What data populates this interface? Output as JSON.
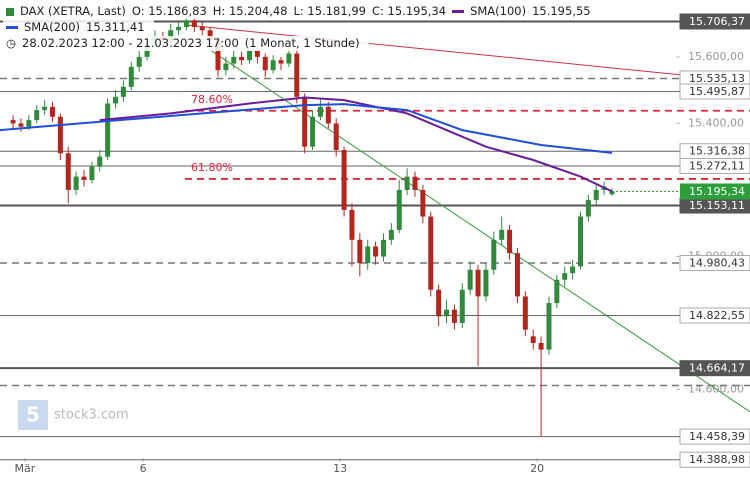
{
  "chart_data": {
    "type": "candlestick",
    "instrument": "DAX (XETRA, Last)",
    "ohlc_labels": [
      "O: 15.186,83",
      "H: 15.204,48",
      "L: 15.181,99",
      "C: 15.195,34"
    ],
    "period": "28.02.2023 12:00 - 21.03.2023 17:00",
    "interval": "(1 Monat, 1 Stunde)",
    "watermark": "stock3.com",
    "up_color": "#2f8a3b",
    "down_color": "#b3261e",
    "xlim": [
      -1.66,
      93.51
    ],
    "ylim": [
      14328,
      15771
    ],
    "xticks": [
      {
        "value": 1.5,
        "label": "Mär"
      },
      {
        "value": 16.5,
        "label": "6"
      },
      {
        "value": 41.5,
        "label": "13"
      },
      {
        "value": 66.5,
        "label": "20"
      }
    ],
    "yticks": [
      {
        "value": 15600,
        "label": "15.600,00"
      },
      {
        "value": 15400,
        "label": "15.400,00"
      },
      {
        "value": 15000,
        "label": "15.000,00"
      },
      {
        "value": 14600,
        "label": "14.600,00"
      }
    ],
    "candles": [
      [
        15410,
        15425,
        15385,
        15400
      ],
      [
        15400,
        15415,
        15375,
        15390
      ],
      [
        15390,
        15425,
        15380,
        15410
      ],
      [
        15410,
        15455,
        15400,
        15440
      ],
      [
        15440,
        15470,
        15425,
        15450
      ],
      [
        15450,
        15465,
        15405,
        15420
      ],
      [
        15420,
        15430,
        15290,
        15310
      ],
      [
        15310,
        15330,
        15160,
        15200
      ],
      [
        15200,
        15255,
        15185,
        15240
      ],
      [
        15240,
        15260,
        15210,
        15230
      ],
      [
        15230,
        15285,
        15220,
        15270
      ],
      [
        15270,
        15320,
        15255,
        15300
      ],
      [
        15300,
        15475,
        15290,
        15460
      ],
      [
        15460,
        15500,
        15445,
        15480
      ],
      [
        15480,
        15530,
        15465,
        15510
      ],
      [
        15510,
        15585,
        15500,
        15570
      ],
      [
        15570,
        15620,
        15555,
        15600
      ],
      [
        15600,
        15655,
        15590,
        15640
      ],
      [
        15640,
        15680,
        15625,
        15660
      ],
      [
        15660,
        15675,
        15635,
        15650
      ],
      [
        15650,
        15700,
        15640,
        15680
      ],
      [
        15680,
        15710,
        15665,
        15690
      ],
      [
        15690,
        15725,
        15680,
        15710
      ],
      [
        15710,
        15720,
        15675,
        15690
      ],
      [
        15690,
        15705,
        15665,
        15680
      ],
      [
        15680,
        15690,
        15630,
        15650
      ],
      [
        15650,
        15660,
        15540,
        15560
      ],
      [
        15560,
        15600,
        15545,
        15580
      ],
      [
        15580,
        15620,
        15565,
        15600
      ],
      [
        15600,
        15615,
        15575,
        15590
      ],
      [
        15590,
        15640,
        15580,
        15620
      ],
      [
        15620,
        15630,
        15580,
        15600
      ],
      [
        15600,
        15610,
        15540,
        15560
      ],
      [
        15560,
        15605,
        15550,
        15590
      ],
      [
        15590,
        15600,
        15560,
        15580
      ],
      [
        15580,
        15630,
        15570,
        15610
      ],
      [
        15610,
        15620,
        15460,
        15480
      ],
      [
        15480,
        15490,
        15310,
        15330
      ],
      [
        15330,
        15440,
        15320,
        15420
      ],
      [
        15420,
        15475,
        15410,
        15450
      ],
      [
        15450,
        15465,
        15385,
        15400
      ],
      [
        15400,
        15415,
        15300,
        15320
      ],
      [
        15320,
        15330,
        15120,
        15140
      ],
      [
        15140,
        15160,
        14970,
        15050
      ],
      [
        15050,
        15070,
        14940,
        14980
      ],
      [
        14980,
        15050,
        14960,
        15030
      ],
      [
        15030,
        15045,
        14975,
        15000
      ],
      [
        15000,
        15070,
        14985,
        15050
      ],
      [
        15050,
        15100,
        15035,
        15080
      ],
      [
        15080,
        15230,
        15070,
        15200
      ],
      [
        15200,
        15265,
        15185,
        15240
      ],
      [
        15240,
        15255,
        15180,
        15200
      ],
      [
        15200,
        15215,
        15100,
        15120
      ],
      [
        15120,
        15135,
        14880,
        14900
      ],
      [
        14900,
        14915,
        14790,
        14820
      ],
      [
        14820,
        14870,
        14800,
        14840
      ],
      [
        14840,
        14855,
        14780,
        14800
      ],
      [
        14800,
        14920,
        14785,
        14900
      ],
      [
        14900,
        14985,
        14885,
        14960
      ],
      [
        14960,
        14975,
        14670,
        14880
      ],
      [
        14880,
        14980,
        14865,
        14960
      ],
      [
        14960,
        15075,
        14945,
        15050
      ],
      [
        15050,
        15120,
        15035,
        15080
      ],
      [
        15080,
        15095,
        14990,
        15010
      ],
      [
        15010,
        15025,
        14860,
        14880
      ],
      [
        14880,
        14895,
        14760,
        14780
      ],
      [
        14760,
        14780,
        14720,
        14740
      ],
      [
        14740,
        14760,
        14460,
        14720
      ],
      [
        14720,
        14880,
        14705,
        14860
      ],
      [
        14860,
        14945,
        14845,
        14930
      ],
      [
        14930,
        14970,
        14910,
        14950
      ],
      [
        14950,
        14990,
        14930,
        14970
      ],
      [
        14970,
        15135,
        14960,
        15120
      ],
      [
        15120,
        15185,
        15105,
        15170
      ],
      [
        15170,
        15215,
        15155,
        15200
      ],
      [
        15200,
        15225,
        15185,
        15210
      ],
      [
        15186.83,
        15204.48,
        15181.99,
        15195.34
      ]
    ],
    "series": [
      {
        "name": "SMA(100)",
        "last_label": "15.195,55",
        "color": "#6a1b9a",
        "x": [
          11,
          20,
          30,
          37,
          42,
          50,
          55,
          60,
          66,
          72,
          76
        ],
        "values": [
          15410,
          15430,
          15460,
          15478,
          15470,
          15430,
          15380,
          15330,
          15290,
          15240,
          15195.55
        ]
      },
      {
        "name": "SMA(200)",
        "last_label": "15.311,41",
        "color": "#1f4fd6",
        "x": [
          -1.66,
          11,
          37,
          42,
          50,
          57,
          67,
          76
        ],
        "values": [
          15380,
          15405,
          15455,
          15458,
          15440,
          15380,
          15335,
          15311.41
        ]
      }
    ],
    "trendlines": [
      {
        "color": "#d0304a",
        "x": [
          21.8,
          93.51
        ],
        "values": [
          15696,
          15525
        ]
      },
      {
        "color": "#3a9a3a",
        "x": [
          25.0,
          93.51
        ],
        "values": [
          15621,
          14533
        ]
      }
    ],
    "fib_levels": [
      {
        "value": 15438,
        "label": "78.60%"
      },
      {
        "value": 15233,
        "label": "61.80%"
      }
    ],
    "fib_color": "#e0243a",
    "levels": [
      {
        "value": 15706.37,
        "label": "15.706,37",
        "style": "thick"
      },
      {
        "value": 15535.13,
        "label": "15.535,13",
        "style": "dashed"
      },
      {
        "value": 15495.87,
        "label": "15.495,87",
        "style": "thin"
      },
      {
        "value": 15316.38,
        "label": "15.316,38",
        "style": "thin"
      },
      {
        "value": 15272.11,
        "label": "15.272,11",
        "style": "thin"
      },
      {
        "value": 15153.11,
        "label": "15.153,11",
        "style": "thick"
      },
      {
        "value": 14980.43,
        "label": "14.980,43",
        "style": "dashed"
      },
      {
        "value": 14822.55,
        "label": "14.822,55",
        "style": "thin"
      },
      {
        "value": 14664.17,
        "label": "14.664,17",
        "style": "thick"
      },
      {
        "value": 14458.39,
        "label": "14.458,39",
        "style": "thin"
      },
      {
        "value": 14388.98,
        "label": "14.388,98",
        "style": "thin"
      }
    ],
    "dashed_lines": [
      14612
    ],
    "current": {
      "value": 15195.34,
      "label": "15.195,34",
      "color": "#2e9d3c"
    }
  }
}
